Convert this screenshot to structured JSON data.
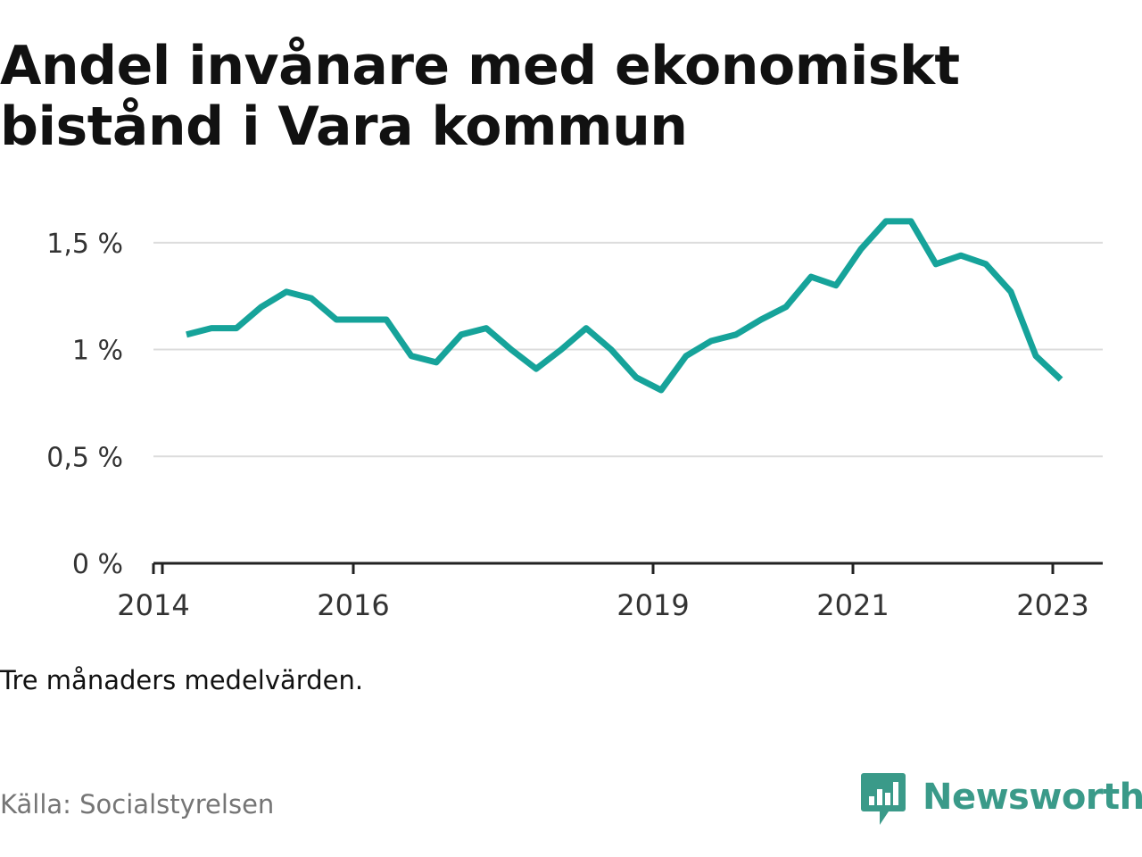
{
  "title_line1": "Andel invånare med ekonomiskt",
  "title_line2": "bistånd i Vara kommun",
  "note": "Tre månaders medelvärden.",
  "source": "Källa: Socialstyrelsen",
  "brand": "Newsworthy",
  "colors": {
    "line": "#16a39a",
    "brand": "#3a9a89",
    "grid": "#dcdcdc",
    "axis": "#222222"
  },
  "chart_data": {
    "type": "line",
    "x_ticks": [
      {
        "value": 2014,
        "label": "2014"
      },
      {
        "value": 2016,
        "label": "2016"
      },
      {
        "value": 2019,
        "label": "2019"
      },
      {
        "value": 2021,
        "label": "2021"
      },
      {
        "value": 2023,
        "label": "2023"
      }
    ],
    "y_ticks": [
      {
        "value": 0,
        "label": "0 %"
      },
      {
        "value": 0.5,
        "label": "0,5 %"
      },
      {
        "value": 1,
        "label": "1 %"
      },
      {
        "value": 1.5,
        "label": "1,5 %"
      }
    ],
    "xlim": [
      2014.0,
      2023.5
    ],
    "ylim": [
      0,
      1.8
    ],
    "grid": true,
    "series": [
      {
        "x": [
          2014.33,
          2014.58,
          2014.83,
          2015.08,
          2015.33,
          2015.58,
          2015.83,
          2016.08,
          2016.33,
          2016.58,
          2016.83,
          2017.08,
          2017.33,
          2017.58,
          2017.83,
          2018.08,
          2018.33,
          2018.58,
          2018.83,
          2019.08,
          2019.33,
          2019.58,
          2019.83,
          2020.08,
          2020.33,
          2020.58,
          2020.83,
          2021.08,
          2021.33,
          2021.58,
          2021.83,
          2022.08,
          2022.33,
          2022.58,
          2022.83,
          2023.08
        ],
        "values": [
          1.07,
          1.1,
          1.1,
          1.2,
          1.27,
          1.24,
          1.14,
          1.14,
          1.14,
          0.97,
          0.94,
          1.07,
          1.1,
          1.0,
          0.91,
          1.0,
          1.1,
          1.0,
          0.87,
          0.81,
          0.97,
          1.04,
          1.07,
          1.14,
          1.2,
          1.34,
          1.3,
          1.47,
          1.6,
          1.6,
          1.4,
          1.44,
          1.4,
          1.27,
          0.97,
          0.86
        ]
      }
    ]
  }
}
